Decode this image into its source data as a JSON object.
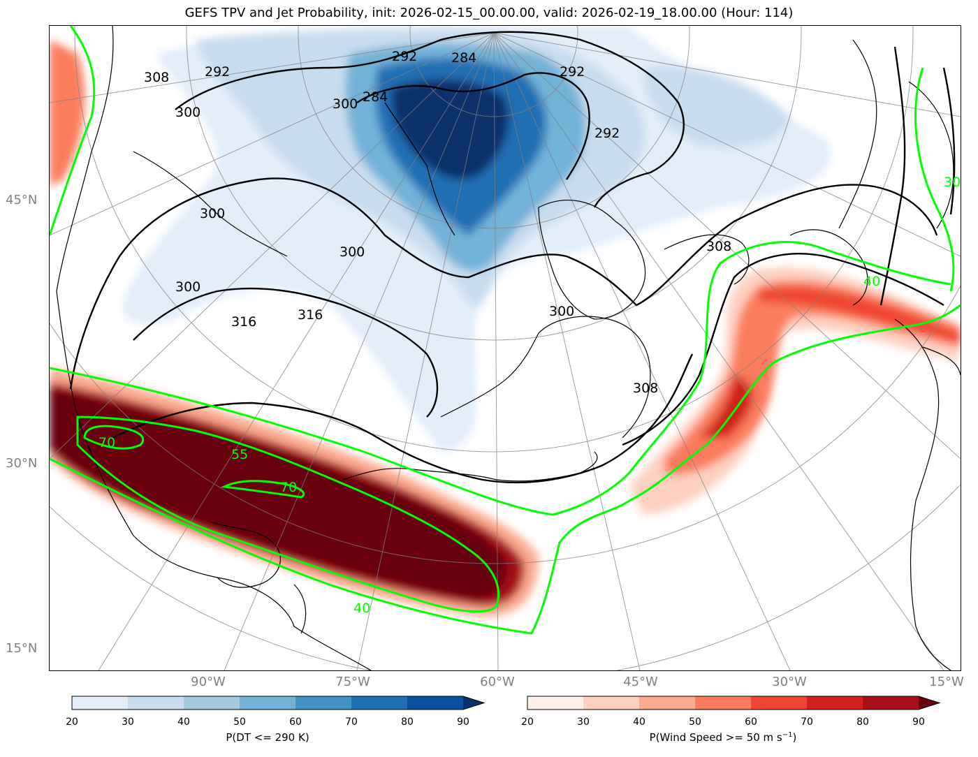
{
  "title": "GEFS TPV and Jet Probability, init: 2026-02-15_00.00.00, valid: 2026-02-19_18.00.00 (Hour: 114)",
  "lat_labels": [
    "45°N",
    "30°N",
    "15°N"
  ],
  "lon_labels": [
    "90°W",
    "75°W",
    "60°W",
    "45°W",
    "30°W",
    "15°W"
  ],
  "contour_labels": {
    "dt_theta": [
      "292",
      "284",
      "292",
      "300",
      "300",
      "292",
      "300",
      "308",
      "284",
      "292",
      "300",
      "300",
      "316",
      "316",
      "300",
      "308",
      "308"
    ],
    "jet_prob": [
      "70",
      "55",
      "70",
      "40",
      "40",
      "30"
    ]
  },
  "colorbar_dt": {
    "label": "P(DT <= 290 K)",
    "ticks": [
      "20",
      "30",
      "40",
      "50",
      "60",
      "70",
      "80",
      "90"
    ],
    "colors": [
      "#e3eef9",
      "#c7dcef",
      "#a2cbe2",
      "#72b2d7",
      "#4292c6",
      "#2070b4",
      "#08519c",
      "#08306b"
    ]
  },
  "colorbar_wind": {
    "label_main": "P(Wind Speed >= 50 m s",
    "label_sup": "−1",
    "label_end": ")",
    "ticks": [
      "20",
      "30",
      "40",
      "50",
      "60",
      "70",
      "80",
      "90"
    ],
    "colors": [
      "#fff0ea",
      "#fdd0c0",
      "#fcaa8e",
      "#fb7c5c",
      "#ef4533",
      "#d0211d",
      "#a50f15",
      "#67000d"
    ]
  },
  "colors": {
    "prob_contour": "#00ff00",
    "theta_contour": "#000000",
    "graticule": "#808080"
  }
}
